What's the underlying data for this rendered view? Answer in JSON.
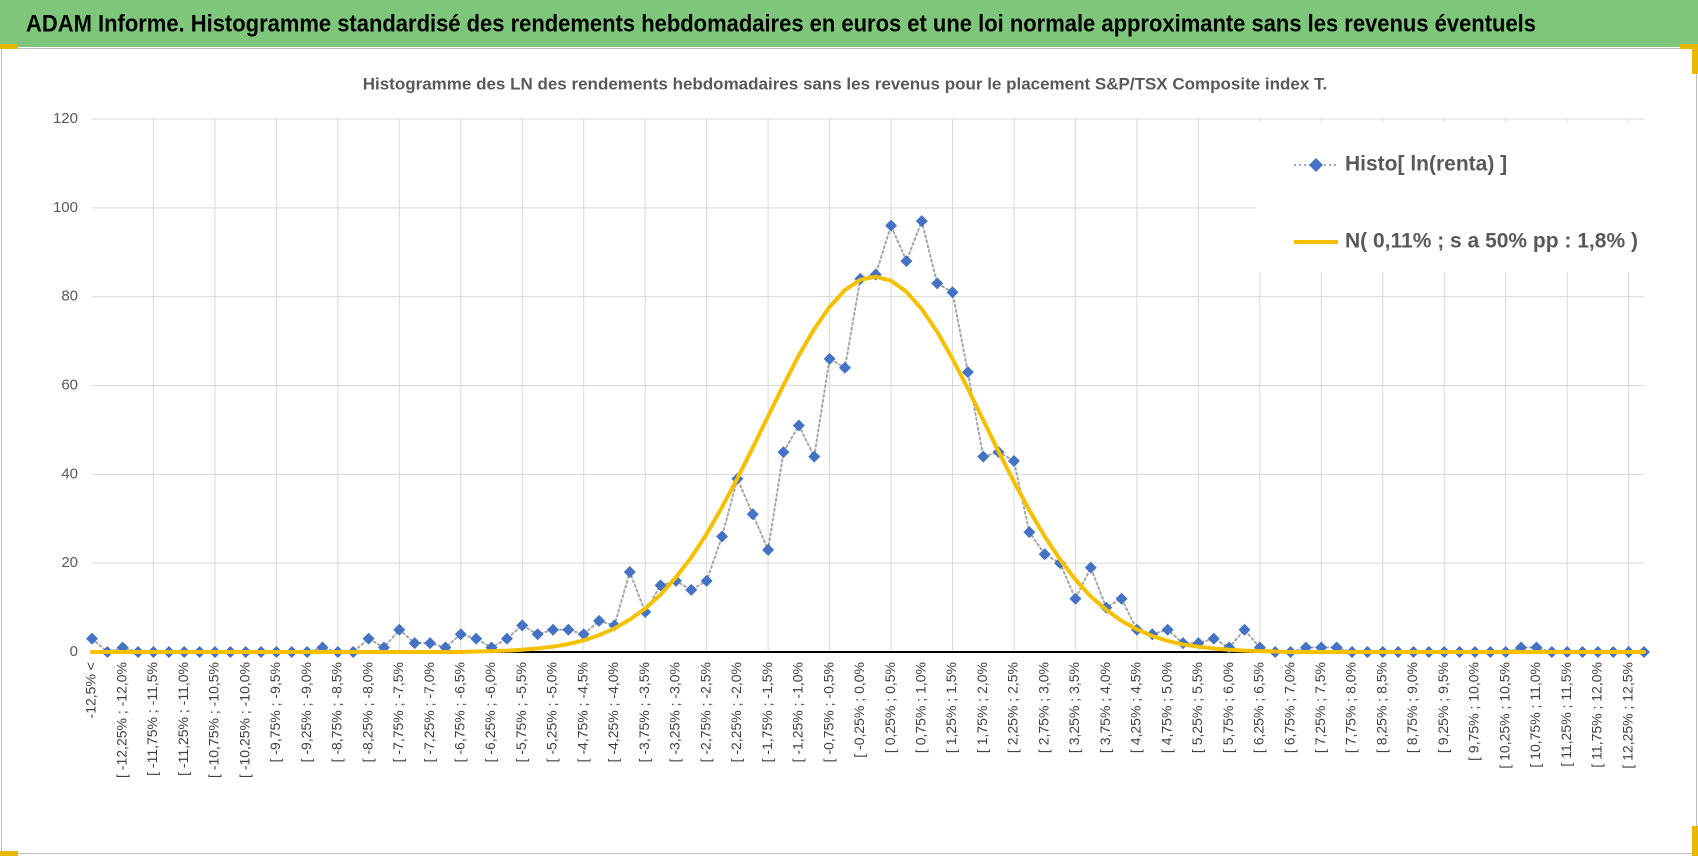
{
  "chart_data": {
    "type": "line",
    "title": "ADAM Informe. Histogramme standardisé des rendements hebdomadaires en euros et une loi normale approximante sans les revenus éventuels",
    "subtitle": "Histogramme  des LN des rendements hebdomadaires sans les revenus pour le placement S&P/TSX Composite index T.",
    "categories": [
      "-12,5% <",
      null,
      "[ -12,25% ; -12,0%",
      null,
      "[ -11,75% ; -11,5%",
      null,
      "[ -11,25% ; -11,0%",
      null,
      "[ -10,75% ; -10,5%",
      null,
      "[ -10,25% ; -10,0%",
      null,
      "[ -9,75% ; -9,5%",
      null,
      "[ -9,25% ; -9,0%",
      null,
      "[ -8,75% ; -8,5%",
      null,
      "[ -8,25% ; -8,0%",
      null,
      "[ -7,75% ; -7,5%",
      null,
      "[ -7,25% ; -7,0%",
      null,
      "[ -6,75% ; -6,5%",
      null,
      "[ -6,25% ; -6,0%",
      null,
      "[ -5,75% ; -5,5%",
      null,
      "[ -5,25% ; -5,0%",
      null,
      "[ -4,75% ; -4,5%",
      null,
      "[ -4,25% ; -4,0%",
      null,
      "[ -3,75% ; -3,5%",
      null,
      "[ -3,25% ; -3,0%",
      null,
      "[ -2,75% ; -2,5%",
      null,
      "[ -2,25% ; -2,0%",
      null,
      "[ -1,75% ; -1,5%",
      null,
      "[ -1,25% ; -1,0%",
      null,
      "[ -0,75% ; -0,5%",
      null,
      "[ -0,25% ; 0,0%",
      null,
      "[ 0,25% ; 0,5%",
      null,
      "[ 0,75% ; 1,0%",
      null,
      "[ 1,25% ; 1,5%",
      null,
      "[ 1,75% ; 2,0%",
      null,
      "[ 2,25% ; 2,5%",
      null,
      "[ 2,75% ; 3,0%",
      null,
      "[ 3,25% ; 3,5%",
      null,
      "[ 3,75% ; 4,0%",
      null,
      "[ 4,25% ; 4,5%",
      null,
      "[ 4,75% ; 5,0%",
      null,
      "[ 5,25% ; 5,5%",
      null,
      "[ 5,75% ; 6,0%",
      null,
      "[ 6,25% ; 6,5%",
      null,
      "[ 6,75% ; 7,0%",
      null,
      "[ 7,25% ; 7,5%",
      null,
      "[ 7,75% ; 8,0%",
      null,
      "[ 8,25% ; 8,5%",
      null,
      "[ 8,75% ; 9,0%",
      null,
      "[ 9,25% ; 9,5%",
      null,
      "[ 9,75% ; 10,0%",
      null,
      "[ 10,25% ; 10,5%",
      null,
      "[ 10,75% ; 11,0%",
      null,
      "[ 11,25% ; 11,5%",
      null,
      "[ 11,75% ; 12,0%",
      null,
      "[ 12,25% ; 12,5%",
      null
    ],
    "series": [
      {
        "name": "Histo[ ln(renta) ]",
        "color": "#4472c4",
        "line_color": "#a6a6a6",
        "line_style": "dotted",
        "marker": "diamond",
        "values": [
          3,
          0,
          1,
          0,
          0,
          0,
          0,
          0,
          0,
          0,
          0,
          0,
          0,
          0,
          0,
          1,
          0,
          0,
          3,
          1,
          5,
          2,
          2,
          1,
          4,
          3,
          1,
          3,
          6,
          4,
          5,
          5,
          4,
          7,
          6,
          18,
          9,
          15,
          16,
          14,
          16,
          26,
          39,
          31,
          23,
          45,
          51,
          44,
          66,
          64,
          84,
          85,
          96,
          88,
          97,
          83,
          81,
          63,
          44,
          45,
          43,
          27,
          22,
          20,
          12,
          19,
          10,
          12,
          5,
          4,
          5,
          2,
          2,
          3,
          1,
          5,
          1,
          0,
          0,
          1,
          1,
          1,
          0,
          0,
          0,
          0,
          0,
          0,
          0,
          0,
          0,
          0,
          0,
          1,
          1,
          0,
          0,
          0,
          0,
          0,
          0,
          0
        ]
      },
      {
        "name": "N( 0,11% ; s a 50% pp : 1,8% )",
        "color": "#f5c000",
        "line_style": "solid",
        "marker": "none",
        "values": [
          0,
          0,
          0,
          0,
          0,
          0,
          0,
          0,
          0,
          0,
          0,
          0,
          0,
          0,
          0,
          0,
          0,
          0,
          0,
          0,
          0,
          0,
          0,
          0,
          0,
          0.1,
          0.2,
          0.3,
          0.5,
          0.8,
          1.2,
          1.8,
          2.6,
          3.8,
          5.3,
          7.3,
          9.8,
          12.9,
          16.8,
          21.3,
          26.6,
          32.6,
          39.1,
          46.0,
          53.1,
          60.1,
          66.8,
          72.7,
          77.7,
          81.5,
          83.8,
          84.5,
          83.6,
          81.1,
          77.2,
          72.1,
          66.0,
          59.3,
          52.2,
          45.1,
          38.3,
          31.9,
          26.0,
          20.8,
          16.3,
          12.5,
          9.5,
          7.0,
          5.1,
          3.6,
          2.5,
          1.7,
          1.2,
          0.8,
          0.5,
          0.3,
          0.2,
          0.1,
          0,
          0,
          0,
          0,
          0,
          0,
          0,
          0,
          0,
          0,
          0,
          0,
          0,
          0,
          0,
          0,
          0,
          0,
          0,
          0,
          0,
          0,
          0,
          0
        ]
      }
    ],
    "ylim": [
      0,
      120
    ],
    "yticks": [
      0,
      20,
      40,
      60,
      80,
      100,
      120
    ],
    "grid": true,
    "legend": "top-right"
  }
}
